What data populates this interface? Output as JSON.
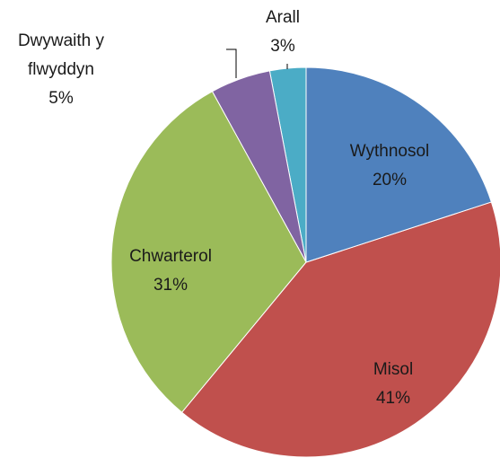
{
  "chart_data": {
    "type": "pie",
    "categories": [
      "Wythnosol",
      "Misol",
      "Chwarterol",
      "Dwywaith y flwyddyn",
      "Arall"
    ],
    "values": [
      20,
      41,
      31,
      5,
      3
    ],
    "value_labels": [
      "20%",
      "41%",
      "31%",
      "5%",
      "3%"
    ],
    "colors": [
      "#4f81bd",
      "#c0504d",
      "#9bbb59",
      "#8064a2",
      "#4bacc6"
    ]
  }
}
